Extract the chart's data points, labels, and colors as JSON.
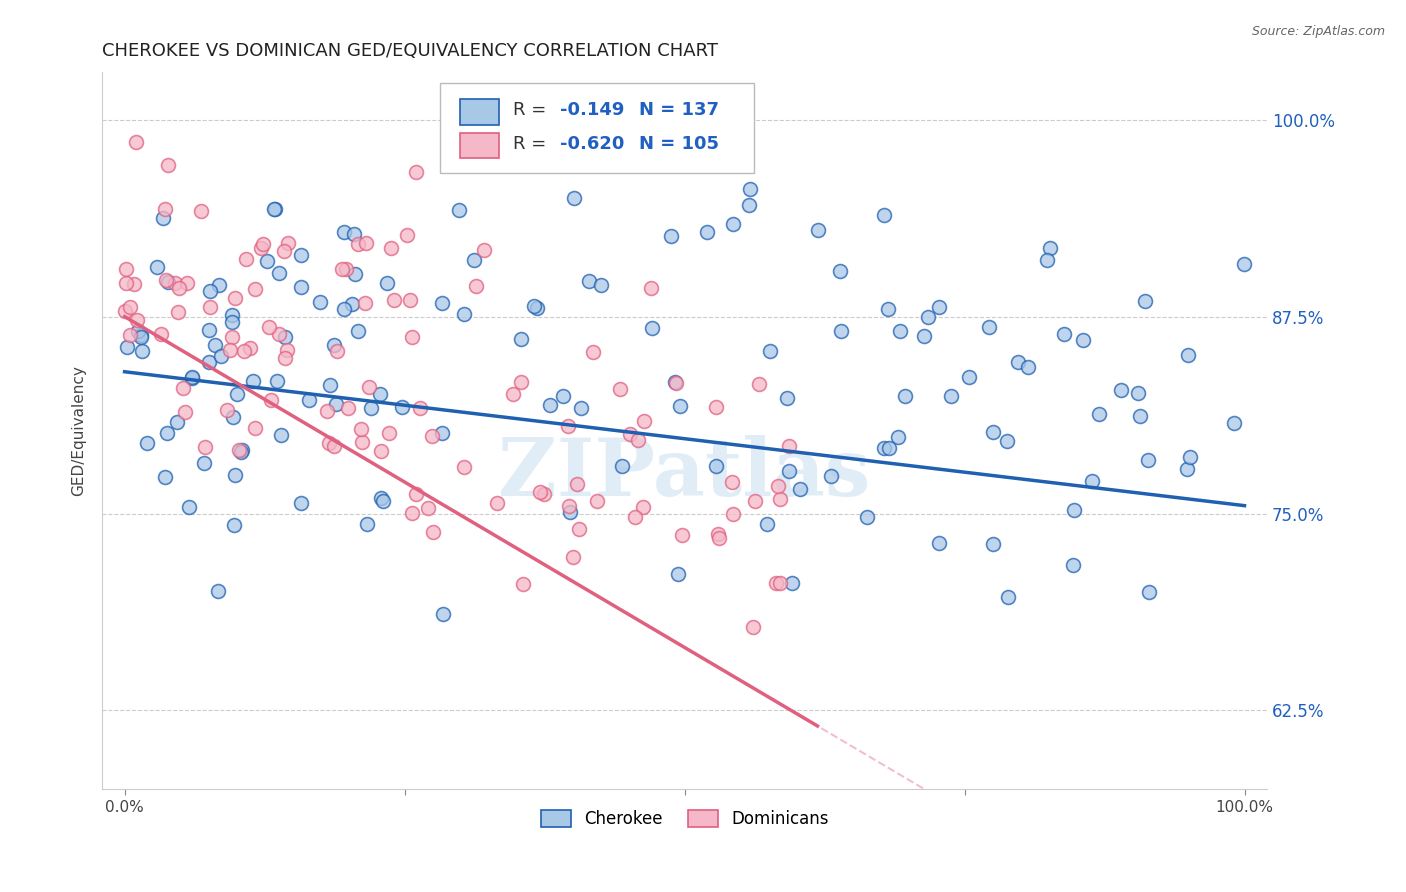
{
  "title": "CHEROKEE VS DOMINICAN GED/EQUIVALENCY CORRELATION CHART",
  "source": "Source: ZipAtlas.com",
  "ylabel": "GED/Equivalency",
  "cherokee_color": "#a8c8e8",
  "dominican_color": "#f5b8c8",
  "cherokee_line_color": "#2060b0",
  "dominican_line_color": "#e06080",
  "cherokee_R": -0.149,
  "cherokee_N": 137,
  "dominican_R": -0.62,
  "dominican_N": 105,
  "legend_R_color": "#2060c0",
  "legend_label1": "Cherokee",
  "legend_label2": "Dominicans",
  "watermark": "ZIPatlas",
  "bg_color": "#ffffff",
  "grid_color": "#cccccc",
  "title_fontsize": 13,
  "source_fontsize": 9,
  "cherokee_seed": 7,
  "dominican_seed": 13,
  "xlim": [
    -0.02,
    1.02
  ],
  "ylim": [
    0.575,
    1.03
  ],
  "y_ticks": [
    0.625,
    0.75,
    0.875,
    1.0
  ],
  "y_tick_labels": [
    "62.5%",
    "75.0%",
    "87.5%",
    "100.0%"
  ],
  "cherokee_line_start": 0.84,
  "cherokee_line_end": 0.755,
  "dominican_line_start": 0.875,
  "dominican_line_end_x": 0.55,
  "dominican_slope": -0.42
}
